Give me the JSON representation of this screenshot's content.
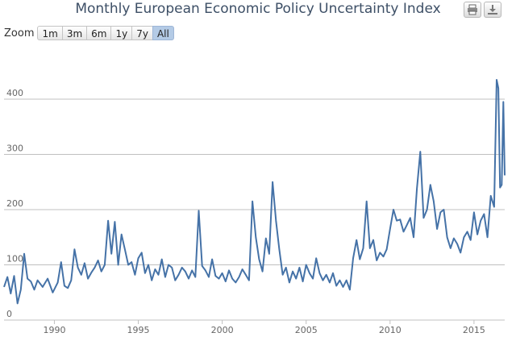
{
  "title": "Monthly European Economic Policy Uncertainty Index",
  "toolbar": {
    "print_icon": "printer-icon",
    "download_icon": "download-icon"
  },
  "zoom": {
    "label": "Zoom",
    "buttons": [
      "1m",
      "3m",
      "6m",
      "1y",
      "7y",
      "All"
    ],
    "active": "All"
  },
  "colors": {
    "line": "#4572a7",
    "grid": "#c0c0c0",
    "active_zoom": "#b4cbe6"
  },
  "chart_data": {
    "type": "line",
    "title": "Monthly European Economic Policy Uncertainty Index",
    "xlabel": "",
    "ylabel": "",
    "xlim": [
      1987.0,
      2016.83
    ],
    "ylim": [
      0,
      450
    ],
    "y_ticks": [
      0,
      100,
      200,
      300,
      400
    ],
    "x_ticks": [
      1990,
      1995,
      2000,
      2005,
      2010,
      2015
    ],
    "grid": "horizontal",
    "series": [
      {
        "values": [
          [
            1987.0,
            60
          ],
          [
            1987.2,
            78
          ],
          [
            1987.4,
            48
          ],
          [
            1987.6,
            80
          ],
          [
            1987.8,
            30
          ],
          [
            1988.0,
            55
          ],
          [
            1988.2,
            120
          ],
          [
            1988.4,
            75
          ],
          [
            1988.6,
            70
          ],
          [
            1988.8,
            55
          ],
          [
            1989.0,
            72
          ],
          [
            1989.3,
            60
          ],
          [
            1989.6,
            75
          ],
          [
            1989.9,
            50
          ],
          [
            1990.2,
            68
          ],
          [
            1990.4,
            105
          ],
          [
            1990.6,
            62
          ],
          [
            1990.8,
            58
          ],
          [
            1991.0,
            72
          ],
          [
            1991.2,
            128
          ],
          [
            1991.4,
            95
          ],
          [
            1991.6,
            82
          ],
          [
            1991.8,
            103
          ],
          [
            1992.0,
            75
          ],
          [
            1992.2,
            86
          ],
          [
            1992.4,
            95
          ],
          [
            1992.6,
            108
          ],
          [
            1992.8,
            88
          ],
          [
            1993.0,
            100
          ],
          [
            1993.2,
            180
          ],
          [
            1993.4,
            120
          ],
          [
            1993.6,
            178
          ],
          [
            1993.8,
            100
          ],
          [
            1994.0,
            155
          ],
          [
            1994.2,
            128
          ],
          [
            1994.4,
            100
          ],
          [
            1994.6,
            105
          ],
          [
            1994.8,
            82
          ],
          [
            1995.0,
            112
          ],
          [
            1995.2,
            122
          ],
          [
            1995.4,
            85
          ],
          [
            1995.6,
            100
          ],
          [
            1995.8,
            72
          ],
          [
            1996.0,
            92
          ],
          [
            1996.2,
            82
          ],
          [
            1996.4,
            110
          ],
          [
            1996.6,
            78
          ],
          [
            1996.8,
            100
          ],
          [
            1997.0,
            95
          ],
          [
            1997.2,
            72
          ],
          [
            1997.4,
            82
          ],
          [
            1997.6,
            95
          ],
          [
            1997.8,
            88
          ],
          [
            1998.0,
            75
          ],
          [
            1998.2,
            90
          ],
          [
            1998.4,
            78
          ],
          [
            1998.6,
            198
          ],
          [
            1998.8,
            98
          ],
          [
            1999.0,
            90
          ],
          [
            1999.2,
            78
          ],
          [
            1999.4,
            110
          ],
          [
            1999.6,
            80
          ],
          [
            1999.8,
            75
          ],
          [
            2000.0,
            85
          ],
          [
            2000.2,
            70
          ],
          [
            2000.4,
            90
          ],
          [
            2000.6,
            75
          ],
          [
            2000.8,
            68
          ],
          [
            2001.0,
            78
          ],
          [
            2001.2,
            92
          ],
          [
            2001.4,
            82
          ],
          [
            2001.6,
            72
          ],
          [
            2001.8,
            215
          ],
          [
            2002.0,
            150
          ],
          [
            2002.2,
            110
          ],
          [
            2002.4,
            88
          ],
          [
            2002.6,
            148
          ],
          [
            2002.8,
            120
          ],
          [
            2003.0,
            250
          ],
          [
            2003.2,
            180
          ],
          [
            2003.4,
            128
          ],
          [
            2003.6,
            82
          ],
          [
            2003.8,
            95
          ],
          [
            2004.0,
            68
          ],
          [
            2004.2,
            88
          ],
          [
            2004.4,
            75
          ],
          [
            2004.6,
            95
          ],
          [
            2004.8,
            70
          ],
          [
            2005.0,
            100
          ],
          [
            2005.2,
            85
          ],
          [
            2005.4,
            75
          ],
          [
            2005.6,
            112
          ],
          [
            2005.8,
            85
          ],
          [
            2006.0,
            72
          ],
          [
            2006.2,
            82
          ],
          [
            2006.4,
            68
          ],
          [
            2006.6,
            85
          ],
          [
            2006.8,
            62
          ],
          [
            2007.0,
            72
          ],
          [
            2007.2,
            60
          ],
          [
            2007.4,
            72
          ],
          [
            2007.6,
            55
          ],
          [
            2007.8,
            112
          ],
          [
            2008.0,
            145
          ],
          [
            2008.2,
            110
          ],
          [
            2008.4,
            130
          ],
          [
            2008.6,
            215
          ],
          [
            2008.8,
            130
          ],
          [
            2009.0,
            145
          ],
          [
            2009.2,
            108
          ],
          [
            2009.4,
            122
          ],
          [
            2009.6,
            115
          ],
          [
            2009.8,
            128
          ],
          [
            2010.0,
            165
          ],
          [
            2010.2,
            200
          ],
          [
            2010.4,
            180
          ],
          [
            2010.6,
            182
          ],
          [
            2010.8,
            160
          ],
          [
            2011.0,
            172
          ],
          [
            2011.2,
            185
          ],
          [
            2011.4,
            150
          ],
          [
            2011.6,
            238
          ],
          [
            2011.8,
            305
          ],
          [
            2012.0,
            185
          ],
          [
            2012.2,
            200
          ],
          [
            2012.4,
            245
          ],
          [
            2012.6,
            215
          ],
          [
            2012.8,
            165
          ],
          [
            2013.0,
            195
          ],
          [
            2013.2,
            200
          ],
          [
            2013.4,
            150
          ],
          [
            2013.6,
            130
          ],
          [
            2013.8,
            148
          ],
          [
            2014.0,
            138
          ],
          [
            2014.2,
            122
          ],
          [
            2014.4,
            150
          ],
          [
            2014.6,
            160
          ],
          [
            2014.8,
            145
          ],
          [
            2015.0,
            195
          ],
          [
            2015.2,
            155
          ],
          [
            2015.4,
            180
          ],
          [
            2015.6,
            192
          ],
          [
            2015.8,
            150
          ],
          [
            2016.0,
            225
          ],
          [
            2016.2,
            205
          ],
          [
            2016.35,
            435
          ],
          [
            2016.45,
            420
          ],
          [
            2016.55,
            240
          ],
          [
            2016.65,
            245
          ],
          [
            2016.75,
            395
          ],
          [
            2016.83,
            262
          ]
        ]
      }
    ]
  }
}
